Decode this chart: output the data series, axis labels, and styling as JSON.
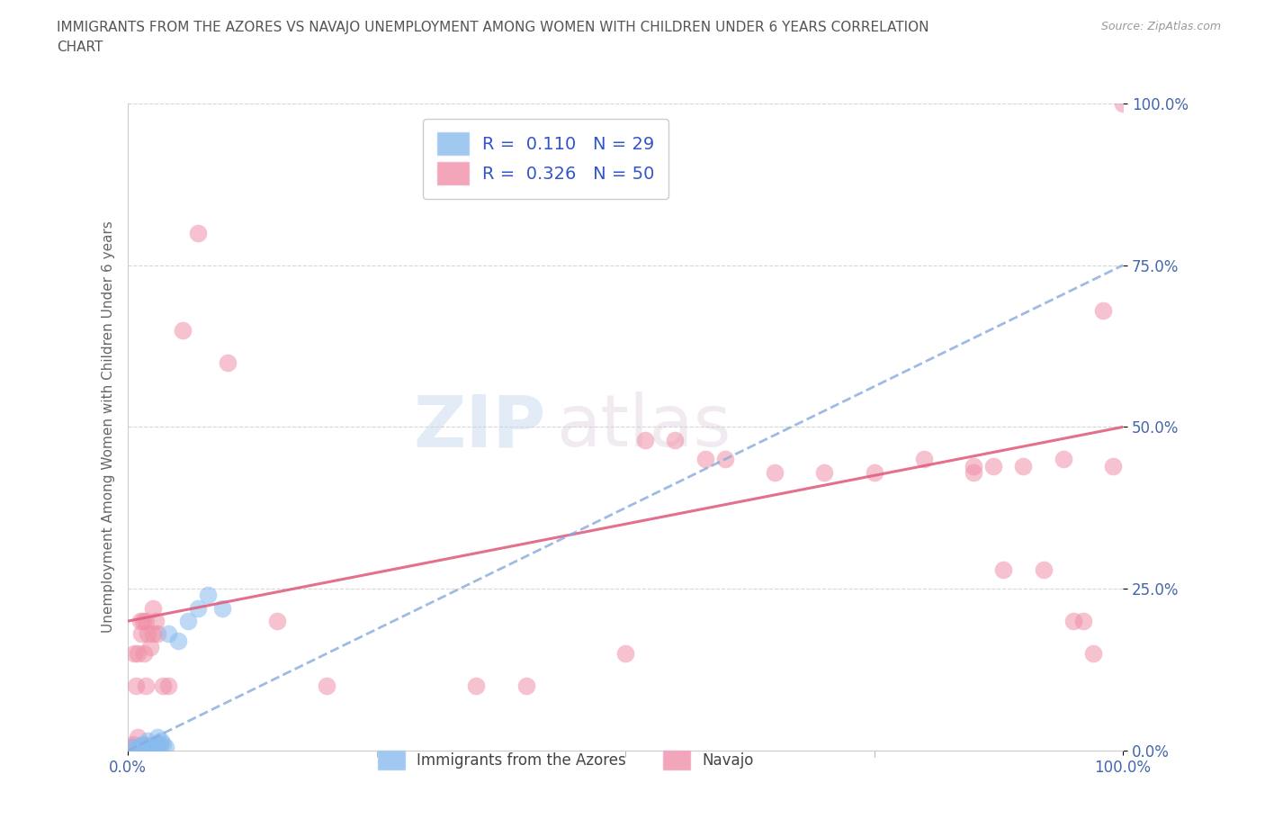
{
  "title_line1": "IMMIGRANTS FROM THE AZORES VS NAVAJO UNEMPLOYMENT AMONG WOMEN WITH CHILDREN UNDER 6 YEARS CORRELATION",
  "title_line2": "CHART",
  "source": "Source: ZipAtlas.com",
  "ylabel": "Unemployment Among Women with Children Under 6 years",
  "azores_color": "#88bbee",
  "navajo_color": "#f090a8",
  "azores_line_color": "#88aadd",
  "navajo_line_color": "#e06080",
  "background_color": "#ffffff",
  "watermark_zip": "ZIP",
  "watermark_atlas": "atlas",
  "R_azores": 0.11,
  "N_azores": 29,
  "R_navajo": 0.326,
  "N_navajo": 50,
  "xlim": [
    0.0,
    1.0
  ],
  "ylim": [
    0.0,
    1.0
  ],
  "azores_scatter_x": [
    0.005,
    0.008,
    0.01,
    0.012,
    0.013,
    0.015,
    0.015,
    0.016,
    0.018,
    0.019,
    0.02,
    0.02,
    0.022,
    0.023,
    0.025,
    0.026,
    0.028,
    0.03,
    0.03,
    0.032,
    0.033,
    0.035,
    0.038,
    0.04,
    0.05,
    0.06,
    0.07,
    0.08,
    0.095
  ],
  "azores_scatter_y": [
    0.005,
    0.003,
    0.003,
    0.002,
    0.008,
    0.005,
    0.01,
    0.003,
    0.007,
    0.005,
    0.002,
    0.015,
    0.008,
    0.005,
    0.005,
    0.003,
    0.01,
    0.02,
    0.005,
    0.01,
    0.015,
    0.01,
    0.005,
    0.18,
    0.17,
    0.2,
    0.22,
    0.24,
    0.22
  ],
  "navajo_scatter_x": [
    0.003,
    0.005,
    0.006,
    0.008,
    0.01,
    0.01,
    0.012,
    0.013,
    0.015,
    0.016,
    0.018,
    0.018,
    0.02,
    0.022,
    0.025,
    0.025,
    0.028,
    0.03,
    0.03,
    0.035,
    0.04,
    0.055,
    0.07,
    0.1,
    0.15,
    0.2,
    0.35,
    0.4,
    0.5,
    0.52,
    0.55,
    0.58,
    0.6,
    0.65,
    0.7,
    0.75,
    0.8,
    0.85,
    0.85,
    0.87,
    0.88,
    0.9,
    0.92,
    0.94,
    0.95,
    0.96,
    0.97,
    0.98,
    0.99,
    1.0
  ],
  "navajo_scatter_y": [
    0.005,
    0.01,
    0.15,
    0.1,
    0.02,
    0.15,
    0.2,
    0.18,
    0.2,
    0.15,
    0.1,
    0.2,
    0.18,
    0.16,
    0.22,
    0.18,
    0.2,
    0.18,
    0.01,
    0.1,
    0.1,
    0.65,
    0.8,
    0.6,
    0.2,
    0.1,
    0.1,
    0.1,
    0.15,
    0.48,
    0.48,
    0.45,
    0.45,
    0.43,
    0.43,
    0.43,
    0.45,
    0.44,
    0.43,
    0.44,
    0.28,
    0.44,
    0.28,
    0.45,
    0.2,
    0.2,
    0.15,
    0.68,
    0.44,
    1.0
  ],
  "navajo_line_x": [
    0.0,
    1.0
  ],
  "navajo_line_y": [
    0.2,
    0.5
  ],
  "azores_line_x": [
    0.0,
    1.0
  ],
  "azores_line_y": [
    0.0,
    0.75
  ]
}
